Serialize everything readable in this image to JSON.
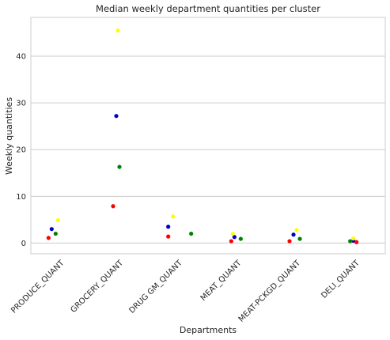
{
  "chart_data": {
    "type": "scatter",
    "title": "Median weekly department quantities per cluster",
    "xlabel": "Departments",
    "ylabel": "Weekly quantities",
    "categories": [
      "PRODUCE_QUANT",
      "GROCERY_QUANT",
      "DRUG GM_QUANT",
      "MEAT_QUANT",
      "MEAT-PCKGD_QUANT",
      "DELI_QUANT"
    ],
    "ylim": [
      -2.3,
      48.3
    ],
    "yticks": [
      0,
      10,
      20,
      30,
      40
    ],
    "ytick_labels": [
      "0",
      "10",
      "20",
      "30",
      "40"
    ],
    "grid": "horizontal",
    "series": [
      {
        "color": "#0000cc",
        "values": [
          3.0,
          27.2,
          3.5,
          1.3,
          1.8,
          0.5
        ]
      },
      {
        "color": "#008000",
        "values": [
          2.0,
          16.3,
          2.0,
          0.9,
          0.9,
          0.4
        ]
      },
      {
        "color": "#ff0000",
        "values": [
          1.1,
          7.9,
          1.4,
          0.4,
          0.4,
          0.2
        ]
      },
      {
        "color": "#ffff00",
        "values": [
          4.9,
          45.5,
          5.7,
          2.0,
          2.8,
          1.0
        ]
      }
    ]
  }
}
